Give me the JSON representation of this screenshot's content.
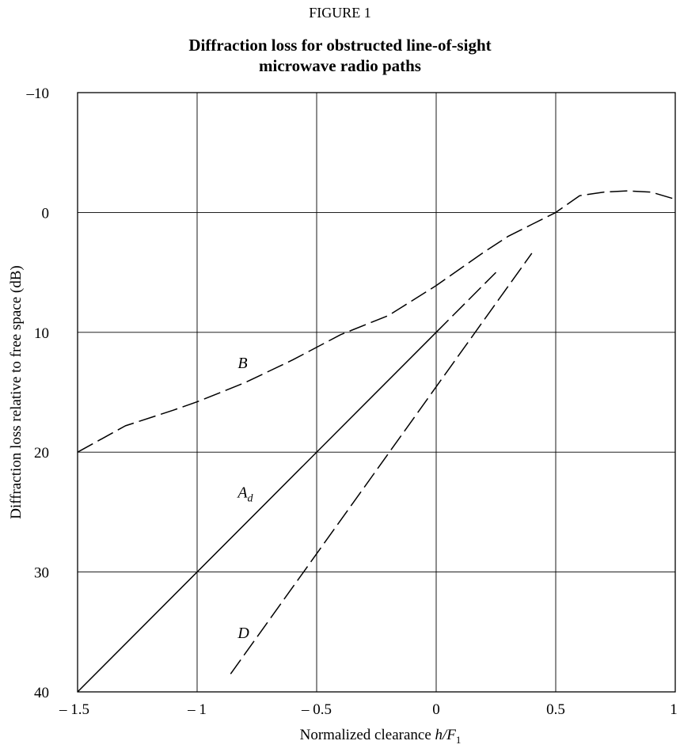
{
  "figure": {
    "label": "FIGURE 1",
    "title_line1": "Diffraction loss for obstructed line-of-sight",
    "title_line2": "microwave radio paths"
  },
  "chart_data": {
    "type": "line",
    "title": "Diffraction loss for obstructed line-of-sight microwave radio paths",
    "xlabel": "Normalized clearance h/F1",
    "xlabel_parts": {
      "main": "Normalized clearance ",
      "var": "h/F",
      "sub": "1"
    },
    "ylabel": "Diffraction loss relative to free space (dB)",
    "xlim": [
      -1.5,
      1
    ],
    "ylim": [
      -10,
      40
    ],
    "y_inverted": true,
    "grid": true,
    "x_ticks": [
      -1.5,
      -1,
      -0.5,
      0,
      0.5,
      1
    ],
    "x_tick_labels": [
      "– 1.5",
      "– 1",
      "– 0.5",
      "0",
      "0.5",
      "1"
    ],
    "y_ticks": [
      -10,
      0,
      10,
      20,
      30,
      40
    ],
    "y_tick_labels": [
      "–10",
      "0",
      "10",
      "20",
      "30",
      "40"
    ],
    "series": [
      {
        "name": "B",
        "style": "dashed",
        "x": [
          -1.5,
          -1.3,
          -1.1,
          -1.0,
          -0.8,
          -0.6,
          -0.4,
          -0.2,
          0.0,
          0.2,
          0.3,
          0.4,
          0.5,
          0.6,
          0.7,
          0.8,
          0.9,
          1.0
        ],
        "y": [
          20,
          17.8,
          16.5,
          15.8,
          14.2,
          12.3,
          10.2,
          8.6,
          6.1,
          3.3,
          2.0,
          1.0,
          0.0,
          -1.4,
          -1.7,
          -1.8,
          -1.7,
          -1.1
        ]
      },
      {
        "name": "A_d",
        "label_main": "A",
        "label_sub": "d",
        "style": "solid",
        "x": [
          -1.5,
          0.0
        ],
        "y": [
          40,
          10
        ]
      },
      {
        "name": "A_d_extension",
        "style": "dashed",
        "x": [
          0.0,
          0.25
        ],
        "y": [
          10,
          5
        ]
      },
      {
        "name": "D",
        "style": "dashed",
        "x": [
          -0.86,
          0.4
        ],
        "y": [
          38.5,
          3.4
        ]
      }
    ],
    "annotations": [
      {
        "text": "B",
        "x": -0.83,
        "y": 13.0
      },
      {
        "text": "A",
        "sub": "d",
        "x": -0.83,
        "y": 23.8
      },
      {
        "text": "D",
        "x": -0.83,
        "y": 35.5
      }
    ]
  }
}
